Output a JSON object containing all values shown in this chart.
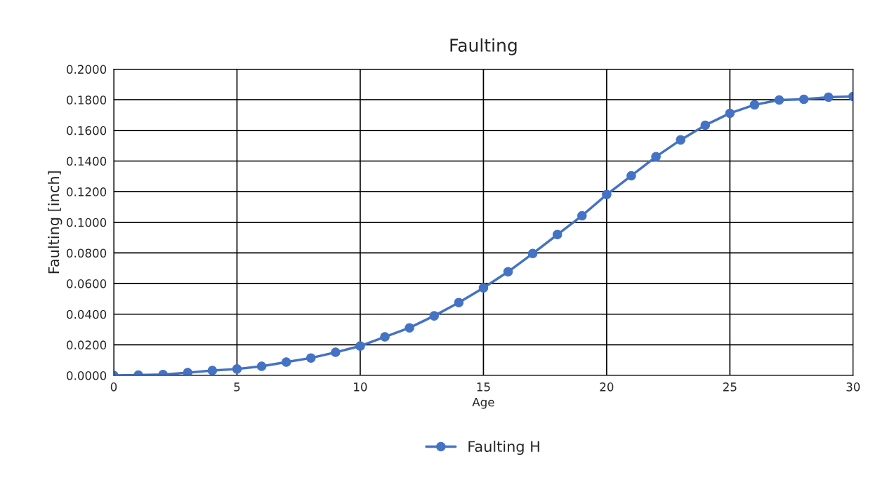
{
  "chart_data": {
    "type": "line",
    "title": "Faulting",
    "xlabel": "Age",
    "ylabel": "Faulting [inch]",
    "x": [
      0,
      1,
      2,
      3,
      4,
      5,
      6,
      7,
      8,
      9,
      10,
      11,
      12,
      13,
      14,
      15,
      16,
      17,
      18,
      19,
      20,
      21,
      22,
      23,
      24,
      25,
      26,
      27,
      28,
      29,
      30
    ],
    "series": [
      {
        "name": "Faulting H",
        "color": "#4472c4",
        "values": [
          0.0,
          0.0002,
          0.0006,
          0.0018,
          0.0032,
          0.0042,
          0.006,
          0.0087,
          0.0114,
          0.0151,
          0.0192,
          0.0252,
          0.0311,
          0.0389,
          0.0476,
          0.0572,
          0.0677,
          0.0796,
          0.092,
          0.1043,
          0.1181,
          0.1304,
          0.1428,
          0.1538,
          0.1634,
          0.1712,
          0.1767,
          0.1799,
          0.1803,
          0.1817,
          0.1822
        ]
      }
    ],
    "xlim": [
      0,
      30
    ],
    "xticks": [
      0,
      5,
      10,
      15,
      20,
      25,
      30
    ],
    "ylim": [
      0,
      0.2
    ],
    "yticks": [
      {
        "value": 0,
        "label": "0.0000"
      },
      {
        "value": 0.02,
        "label": "0.0200"
      },
      {
        "value": 0.04,
        "label": "0.0400"
      },
      {
        "value": 0.06,
        "label": "0.0600"
      },
      {
        "value": 0.08,
        "label": "0.0800"
      },
      {
        "value": 0.1,
        "label": "0.1000"
      },
      {
        "value": 0.12,
        "label": "0.1200"
      },
      {
        "value": 0.14,
        "label": "0.1400"
      },
      {
        "value": 0.16,
        "label": "0.1600"
      },
      {
        "value": 0.18,
        "label": "0.1800"
      },
      {
        "value": 0.2,
        "label": "0.2000"
      }
    ],
    "grid": true,
    "legend": "bottom",
    "marker": "circle",
    "line_style": "solid"
  }
}
